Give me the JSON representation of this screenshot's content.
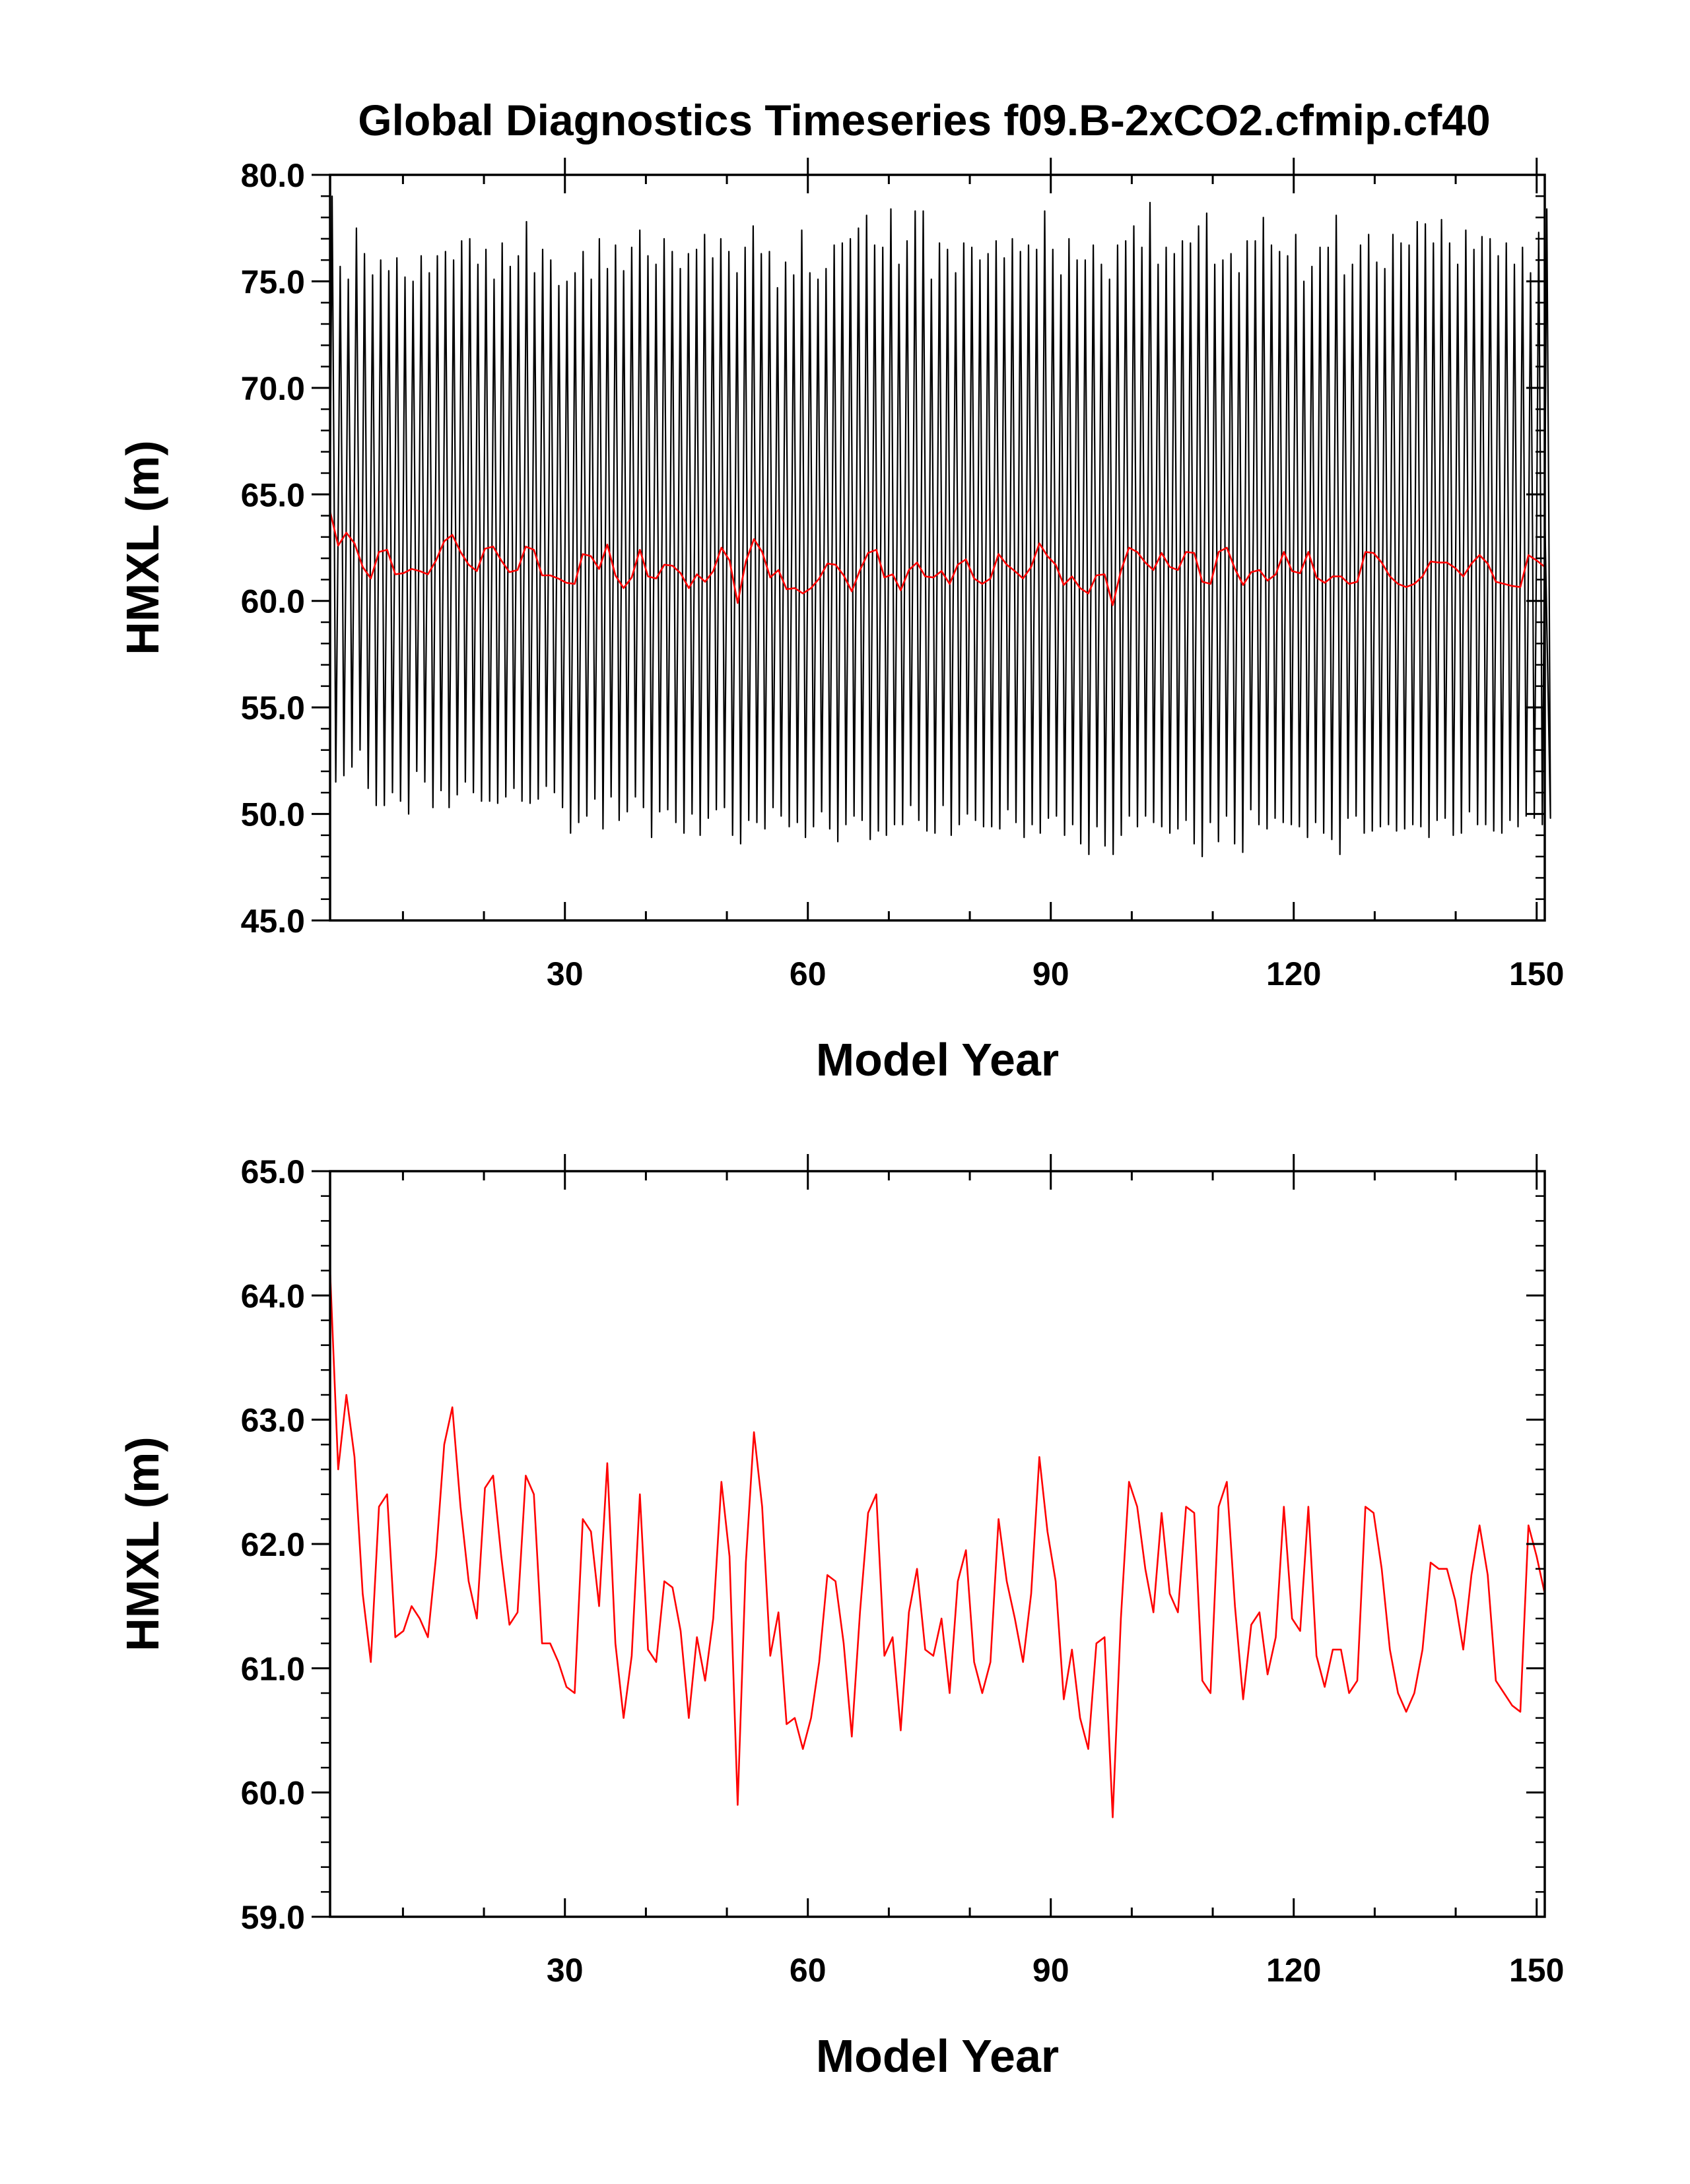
{
  "title": "Global Diagnostics Timeseries f09.B-2xCO2.cfmip.cf40",
  "colors": {
    "monthly": "#000000",
    "annual": "#ff0000",
    "axes": "#000000"
  },
  "chart_data": [
    {
      "type": "line",
      "title": "Global Diagnostics Timeseries f09.B-2xCO2.cfmip.cf40",
      "xlabel": "Model Year",
      "ylabel": "HMXL (m)",
      "xlim": [
        1,
        151
      ],
      "ylim": [
        45.0,
        80.0
      ],
      "xticks": [
        30,
        60,
        90,
        120,
        150
      ],
      "yticks": [
        "45.0",
        "50.0",
        "55.0",
        "60.0",
        "65.0",
        "70.0",
        "75.0",
        "80.0"
      ],
      "series": [
        {
          "color": "#000000",
          "style": "monthly seasonal cycle",
          "x_start": 1,
          "x_end": 151,
          "annual_max": [
            79.0,
            75.7,
            75.1,
            77.5,
            76.3,
            75.3,
            76.0,
            75.5,
            76.1,
            75.2,
            75.0,
            76.2,
            75.4,
            76.2,
            76.4,
            76.0,
            76.9,
            77.0,
            75.8,
            76.5,
            75.1,
            76.8,
            75.7,
            76.2,
            77.8,
            75.4,
            76.5,
            76.0,
            74.8,
            75.0,
            75.4,
            76.4,
            75.1,
            77.0,
            75.6,
            76.7,
            75.5,
            76.6,
            77.4,
            76.2,
            75.8,
            77.0,
            76.4,
            75.6,
            76.3,
            76.5,
            77.2,
            76.1,
            77.0,
            76.4,
            75.4,
            76.6,
            77.6,
            76.3,
            76.4,
            74.7,
            75.9,
            75.3,
            77.4,
            75.4,
            75.1,
            75.6,
            76.7,
            76.8,
            77.0,
            77.5,
            78.1,
            76.7,
            76.6,
            78.4,
            75.8,
            76.9,
            78.3,
            78.3,
            75.1,
            76.8,
            76.5,
            75.4,
            76.8,
            76.6,
            76.0,
            76.3,
            76.9,
            76.1,
            77.0,
            76.4,
            76.7,
            76.5,
            78.3,
            76.5,
            75.3,
            77.0,
            76.0,
            76.0,
            76.7,
            75.8,
            75.1,
            76.7,
            76.9,
            77.6,
            76.6,
            78.7,
            75.8,
            76.6,
            76.3,
            76.9,
            76.8,
            77.6,
            78.2,
            75.8,
            76.0,
            76.3,
            75.4,
            76.9,
            76.9,
            78.0,
            76.7,
            76.4,
            76.2,
            77.2,
            75.0,
            75.7,
            76.6,
            76.6,
            78.1,
            75.3,
            75.8,
            76.7,
            77.2,
            75.9,
            75.6,
            77.2,
            76.8,
            76.7,
            77.8,
            77.7,
            76.8,
            77.9,
            76.8,
            75.8,
            77.4,
            76.5,
            77.1,
            77.0,
            76.2,
            76.8,
            75.8,
            76.6,
            75.4,
            77.3,
            78.4
          ],
          "annual_min": [
            51.5,
            51.8,
            52.2,
            53.0,
            51.2,
            50.4,
            50.4,
            51.0,
            50.6,
            50.0,
            52.0,
            51.5,
            50.3,
            51.1,
            50.3,
            50.9,
            51.5,
            51.0,
            50.6,
            50.6,
            50.5,
            50.8,
            51.2,
            50.6,
            50.5,
            50.7,
            51.3,
            51.0,
            50.3,
            49.1,
            49.6,
            49.9,
            50.7,
            49.3,
            50.8,
            49.7,
            50.1,
            50.8,
            50.3,
            48.9,
            50.1,
            50.2,
            49.6,
            49.1,
            50.0,
            49.0,
            49.8,
            50.2,
            50.3,
            49.0,
            48.6,
            49.7,
            49.6,
            49.3,
            50.3,
            49.9,
            49.4,
            49.6,
            48.9,
            49.4,
            50.1,
            49.3,
            48.7,
            49.5,
            49.9,
            49.7,
            48.8,
            49.2,
            49.0,
            49.5,
            49.5,
            50.4,
            49.7,
            49.2,
            49.1,
            50.4,
            49.0,
            49.5,
            50.0,
            49.7,
            49.4,
            49.4,
            49.3,
            50.2,
            49.6,
            48.9,
            49.5,
            49.1,
            49.8,
            49.9,
            49.0,
            49.5,
            48.6,
            48.1,
            49.4,
            48.5,
            48.1,
            49.0,
            49.9,
            49.4,
            49.9,
            49.6,
            49.4,
            49.1,
            49.3,
            49.7,
            48.6,
            48.0,
            49.6,
            48.7,
            49.9,
            48.6,
            48.2,
            50.2,
            49.5,
            49.3,
            49.8,
            49.6,
            49.5,
            49.4,
            48.9,
            49.6,
            49.1,
            48.8,
            48.1,
            49.8,
            49.9,
            49.1,
            49.2,
            49.4,
            49.5,
            49.2,
            49.3,
            49.5,
            49.4,
            48.9,
            49.7,
            49.8,
            49.0,
            49.1,
            50.1,
            49.5,
            49.5,
            49.2,
            49.1,
            49.7,
            49.4,
            49.9,
            49.8,
            49.5,
            49.8
          ]
        },
        {
          "color": "#ff0000",
          "style": "annual mean",
          "x_start": 1,
          "x_end": 151,
          "values": [
            64.2,
            62.6,
            63.2,
            62.7,
            61.6,
            61.05,
            62.3,
            62.4,
            61.25,
            61.3,
            61.5,
            61.4,
            61.25,
            61.9,
            62.8,
            63.1,
            62.3,
            61.7,
            61.4,
            62.45,
            62.55,
            61.9,
            61.35,
            61.45,
            62.55,
            62.4,
            61.2,
            61.2,
            61.05,
            60.85,
            60.8,
            62.2,
            62.1,
            61.5,
            62.65,
            61.2,
            60.6,
            61.1,
            62.4,
            61.15,
            61.05,
            61.7,
            61.65,
            61.3,
            60.6,
            61.25,
            60.9,
            61.4,
            62.5,
            61.9,
            59.9,
            61.85,
            62.9,
            62.3,
            61.1,
            61.45,
            60.55,
            60.6,
            60.35,
            60.6,
            61.05,
            61.75,
            61.7,
            61.2,
            60.45,
            61.45,
            62.25,
            62.4,
            61.1,
            61.25,
            60.5,
            61.45,
            61.8,
            61.15,
            61.1,
            61.4,
            60.8,
            61.7,
            61.95,
            61.05,
            60.8,
            61.05,
            62.2,
            61.7,
            61.4,
            61.05,
            61.6,
            62.7,
            62.1,
            61.7,
            60.75,
            61.15,
            60.6,
            60.35,
            61.2,
            61.25,
            59.8,
            61.4,
            62.5,
            62.3,
            61.8,
            61.45,
            62.25,
            61.6,
            61.45,
            62.3,
            62.25,
            60.9,
            60.8,
            62.3,
            62.5,
            61.5,
            60.75,
            61.35,
            61.45,
            60.95,
            61.25,
            62.3,
            61.4,
            61.3,
            62.3,
            61.1,
            60.85,
            61.15,
            61.15,
            60.8,
            60.9,
            62.3,
            62.25,
            61.8,
            61.15,
            60.8,
            60.65,
            60.8,
            61.15,
            61.85,
            61.8,
            61.8,
            61.55,
            61.15,
            61.75,
            62.15,
            61.75,
            60.9,
            60.8,
            60.7,
            60.65,
            62.15,
            61.9,
            61.6
          ]
        }
      ]
    },
    {
      "type": "line",
      "xlabel": "Model Year",
      "ylabel": "HMXL (m)",
      "xlim": [
        1,
        151
      ],
      "ylim": [
        59.0,
        65.0
      ],
      "xticks": [
        30,
        60,
        90,
        120,
        150
      ],
      "yticks": [
        "59.0",
        "60.0",
        "61.0",
        "62.0",
        "63.0",
        "64.0",
        "65.0"
      ],
      "series": [
        {
          "color": "#ff0000",
          "style": "annual mean",
          "x_start": 1,
          "x_end": 151,
          "values": [
            64.2,
            62.6,
            63.2,
            62.7,
            61.6,
            61.05,
            62.3,
            62.4,
            61.25,
            61.3,
            61.5,
            61.4,
            61.25,
            61.9,
            62.8,
            63.1,
            62.3,
            61.7,
            61.4,
            62.45,
            62.55,
            61.9,
            61.35,
            61.45,
            62.55,
            62.4,
            61.2,
            61.2,
            61.05,
            60.85,
            60.8,
            62.2,
            62.1,
            61.5,
            62.65,
            61.2,
            60.6,
            61.1,
            62.4,
            61.15,
            61.05,
            61.7,
            61.65,
            61.3,
            60.6,
            61.25,
            60.9,
            61.4,
            62.5,
            61.9,
            59.9,
            61.85,
            62.9,
            62.3,
            61.1,
            61.45,
            60.55,
            60.6,
            60.35,
            60.6,
            61.05,
            61.75,
            61.7,
            61.2,
            60.45,
            61.45,
            62.25,
            62.4,
            61.1,
            61.25,
            60.5,
            61.45,
            61.8,
            61.15,
            61.1,
            61.4,
            60.8,
            61.7,
            61.95,
            61.05,
            60.8,
            61.05,
            62.2,
            61.7,
            61.4,
            61.05,
            61.6,
            62.7,
            62.1,
            61.7,
            60.75,
            61.15,
            60.6,
            60.35,
            61.2,
            61.25,
            59.8,
            61.4,
            62.5,
            62.3,
            61.8,
            61.45,
            62.25,
            61.6,
            61.45,
            62.3,
            62.25,
            60.9,
            60.8,
            62.3,
            62.5,
            61.5,
            60.75,
            61.35,
            61.45,
            60.95,
            61.25,
            62.3,
            61.4,
            61.3,
            62.3,
            61.1,
            60.85,
            61.15,
            61.15,
            60.8,
            60.9,
            62.3,
            62.25,
            61.8,
            61.15,
            60.8,
            60.65,
            60.8,
            61.15,
            61.85,
            61.8,
            61.8,
            61.55,
            61.15,
            61.75,
            62.15,
            61.75,
            60.9,
            60.8,
            60.7,
            60.65,
            62.15,
            61.9,
            61.6
          ]
        }
      ]
    }
  ]
}
